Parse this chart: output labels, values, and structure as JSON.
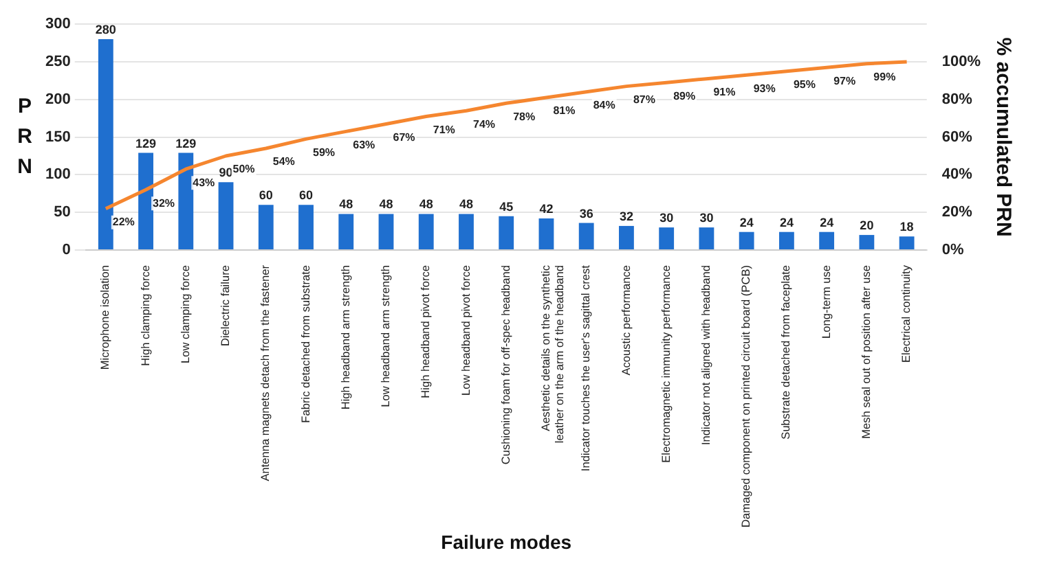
{
  "chart_data": {
    "type": "bar",
    "xlabel": "Failure modes",
    "ylabel": "PRN",
    "y2label": "% accumulated PRN",
    "categories": [
      "Microphone isolation",
      "High clamping force",
      "Low clamping force",
      "Dielectric failure",
      "Antenna magnets detach from the fastener",
      "Fabric detached from substrate",
      "High headband arm strength",
      "Low headband arm strength",
      "High headband pivot force",
      "Low headband pivot force",
      "Cushioning foam for off-spec headband",
      "Aesthetic details on the synthetic leather on the arm of the headband",
      "Indicator touches the user's sagittal crest",
      "Acoustic performance",
      "Electromagnetic immunity performance",
      "Indicator not aligned with headband",
      "Damaged component on printed circuit board (PCB)",
      "Substrate detached from faceplate",
      "Long-term use",
      "Mesh seal out of position after use",
      "Electrical continuity"
    ],
    "series": [
      {
        "color": "#1f6fcf",
        "data_labels": true,
        "values": [
          280,
          129,
          129,
          90,
          60,
          60,
          48,
          48,
          48,
          48,
          45,
          42,
          36,
          32,
          30,
          30,
          24,
          24,
          24,
          20,
          18
        ]
      },
      {
        "type": "line",
        "axis": "y2",
        "color": "#f5862f",
        "marker": "none",
        "values": [
          22,
          32,
          43,
          50,
          54,
          59,
          63,
          67,
          71,
          74,
          78,
          81,
          84,
          87,
          89,
          91,
          93,
          95,
          97,
          99,
          100
        ],
        "value_labels": [
          "22%",
          "32%",
          "43%",
          "50%",
          "54%",
          "59%",
          "63%",
          "67%",
          "71%",
          "74%",
          "78%",
          "81%",
          "84%",
          "87%",
          "89%",
          "91%",
          "93%",
          "95%",
          "97%",
          "99%",
          null
        ]
      }
    ],
    "ylim": [
      0,
      300
    ],
    "yticks": [
      0,
      50,
      100,
      150,
      200,
      250,
      300
    ],
    "y2lim": [
      0,
      120
    ],
    "y2ticks": [
      {
        "value": 0,
        "label": "0%"
      },
      {
        "value": 20,
        "label": "20%"
      },
      {
        "value": 40,
        "label": "40%"
      },
      {
        "value": 60,
        "label": "60%"
      },
      {
        "value": 80,
        "label": "80%"
      },
      {
        "value": 100,
        "label": "100%"
      }
    ],
    "grid": "y",
    "legend": false
  }
}
